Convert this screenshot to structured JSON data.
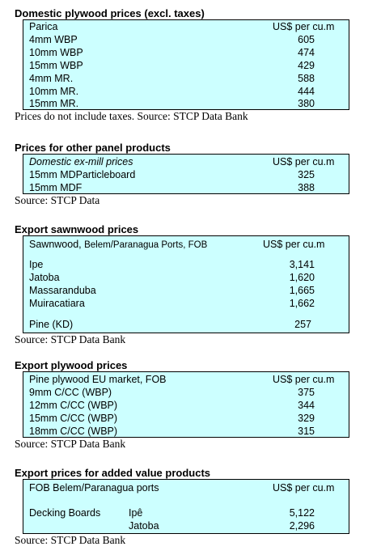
{
  "domestic": {
    "title": "Domestic plywood prices (excl. taxes)",
    "header_label": "Parica",
    "header_unit": "US$ per cu.m",
    "rows": [
      {
        "label": "4mm WBP",
        "value": "605"
      },
      {
        "label": "10mm WBP",
        "value": "474"
      },
      {
        "label": "15mm WBP",
        "value": "429"
      },
      {
        "label": "4mm MR.",
        "value": "588"
      },
      {
        "label": "10mm MR.",
        "value": "444"
      },
      {
        "label": "15mm MR.",
        "value": "380"
      }
    ],
    "source": "Prices do not include taxes. Source: STCP Data Bank"
  },
  "other_panels": {
    "title": "Prices for other panel products",
    "header_label": "Domestic ex-mill prices",
    "header_unit": "US$ per cu.m",
    "rows": [
      {
        "label": "15mm MDParticleboard",
        "value": "325"
      },
      {
        "label": "15mm MDF",
        "value": "388"
      }
    ],
    "source": "Source: STCP Data"
  },
  "sawnwood": {
    "title": "Export sawnwood prices",
    "header_label_main": "Sawnwood,",
    "header_label_small": "Belem/Paranagua Ports, FOB",
    "header_unit": "US$ per cu.m",
    "rows": [
      {
        "label": "Ipe",
        "value": "3,141"
      },
      {
        "label": "Jatoba",
        "value": "1,620"
      },
      {
        "label": "Massaranduba",
        "value": "1,665"
      },
      {
        "label": "Muiracatiara",
        "value": "1,662"
      },
      {
        "label": "Pine (KD)",
        "value": "257"
      }
    ],
    "source": "Source: STCP Data Bank"
  },
  "export_plywood": {
    "title": "Export plywood prices",
    "header_label": "Pine plywood EU market, FOB",
    "header_unit": "US$ per cu.m",
    "rows": [
      {
        "label": "9mm C/CC (WBP)",
        "value": "375"
      },
      {
        "label": "12mm C/CC (WBP)",
        "value": "344"
      },
      {
        "label": "15mm C/CC (WBP)",
        "value": "329"
      },
      {
        "label": "18mm C/CC (WBP)",
        "value": "315"
      }
    ],
    "source": "Source: STCP Data Bank"
  },
  "added_value": {
    "title": "Export prices for added value products",
    "header_label": "FOB Belem/Paranagua ports",
    "header_unit": "US$ per cu.m",
    "product": "Decking Boards",
    "rows": [
      {
        "label": "Ipê",
        "value": "5,122"
      },
      {
        "label": "Jatoba",
        "value": "2,296"
      }
    ],
    "source": "Source: STCP Data Bank"
  }
}
